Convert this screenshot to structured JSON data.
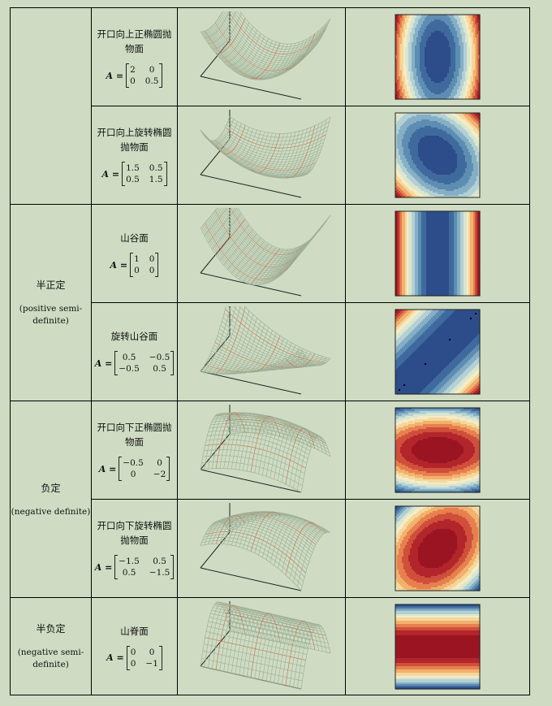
{
  "colors": {
    "page_background": "#cfdcc3",
    "surface_mesh": "#a6b8a0",
    "contour_low": "#2d4c8a",
    "contour_mid": "#f3ecc6",
    "contour_high": "#9b1422"
  },
  "rows": [
    {
      "name": "开口向上正椭圆抛物面",
      "matrix_symbol": "A =",
      "matrix": [
        [
          "2",
          "0"
        ],
        [
          "0",
          "0.5"
        ]
      ]
    },
    {
      "name": "开口向上旋转椭圆抛物面",
      "matrix_symbol": "A =",
      "matrix": [
        [
          "1.5",
          "0.5"
        ],
        [
          "0.5",
          "1.5"
        ]
      ]
    },
    {
      "name": "山谷面",
      "matrix_symbol": "A =",
      "matrix": [
        [
          "1",
          "0"
        ],
        [
          "0",
          "0"
        ]
      ]
    },
    {
      "name": "旋转山谷面",
      "matrix_symbol": "A =",
      "matrix": [
        [
          "0.5",
          "−0.5"
        ],
        [
          "−0.5",
          "0.5"
        ]
      ]
    },
    {
      "name": "开口向下正椭圆抛物面",
      "matrix_symbol": "A =",
      "matrix": [
        [
          "−0.5",
          "0"
        ],
        [
          "0",
          "−2"
        ]
      ]
    },
    {
      "name": "开口向下旋转椭圆抛物面",
      "matrix_symbol": "A =",
      "matrix": [
        [
          "−1.5",
          "0.5"
        ],
        [
          "0.5",
          "−1.5"
        ]
      ]
    },
    {
      "name": "山脊面",
      "matrix_symbol": "A =",
      "matrix": [
        [
          "0",
          "0"
        ],
        [
          "0",
          "−1"
        ]
      ]
    }
  ],
  "categories": [
    {
      "zh": "",
      "en": ""
    },
    {
      "zh": "半正定",
      "en": "(positive semi-definite)"
    },
    {
      "zh": "负定",
      "en": "(negative definite)"
    },
    {
      "zh": "半负定",
      "en": "(negative semi-definite)"
    }
  ]
}
